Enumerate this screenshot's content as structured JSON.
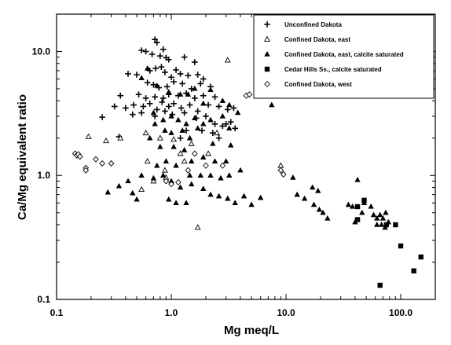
{
  "chart_data": {
    "type": "scatter",
    "title": "",
    "xlabel": "Mg  meq/L",
    "ylabel": "Ca/Mg  equivalent ratio",
    "x_scale": "log",
    "y_scale": "log",
    "xlim": [
      0.1,
      200
    ],
    "ylim": [
      0.1,
      20
    ],
    "x_ticks": [
      0.1,
      1.0,
      10.0,
      100.0
    ],
    "x_tick_labels": [
      "0.1",
      "1.0",
      "10.0",
      "100.0"
    ],
    "y_ticks": [
      0.1,
      1.0,
      10.0
    ],
    "y_tick_labels": [
      "0.1",
      "1.0",
      "10.0"
    ],
    "grid": false,
    "legend_position": "top-right",
    "series": [
      {
        "name": "Unconfined Dakota",
        "marker": "plus",
        "points": [
          [
            0.72,
            12.5
          ],
          [
            0.75,
            11.8
          ],
          [
            0.55,
            10.2
          ],
          [
            0.6,
            10.0
          ],
          [
            0.85,
            10.4
          ],
          [
            0.68,
            9.5
          ],
          [
            0.8,
            9.2
          ],
          [
            0.9,
            8.9
          ],
          [
            0.95,
            8.6
          ],
          [
            1.3,
            9.0
          ],
          [
            1.6,
            8.2
          ],
          [
            0.42,
            6.6
          ],
          [
            0.5,
            6.5
          ],
          [
            0.65,
            7.0
          ],
          [
            0.73,
            7.3
          ],
          [
            0.82,
            7.5
          ],
          [
            0.88,
            6.8
          ],
          [
            1.0,
            6.2
          ],
          [
            1.1,
            7.1
          ],
          [
            1.2,
            6.6
          ],
          [
            1.4,
            6.4
          ],
          [
            1.7,
            6.5
          ],
          [
            1.9,
            6.0
          ],
          [
            0.62,
            5.6
          ],
          [
            0.7,
            5.4
          ],
          [
            0.78,
            5.1
          ],
          [
            0.92,
            5.2
          ],
          [
            1.05,
            5.7
          ],
          [
            1.25,
            5.5
          ],
          [
            1.5,
            5.0
          ],
          [
            2.2,
            5.2
          ],
          [
            1.8,
            5.5
          ],
          [
            0.36,
            4.4
          ],
          [
            0.52,
            4.5
          ],
          [
            0.6,
            4.2
          ],
          [
            0.72,
            4.3
          ],
          [
            0.85,
            4.2
          ],
          [
            0.95,
            4.5
          ],
          [
            1.15,
            4.4
          ],
          [
            1.35,
            4.6
          ],
          [
            1.6,
            4.2
          ],
          [
            1.9,
            4.4
          ],
          [
            2.4,
            4.3
          ],
          [
            0.32,
            3.6
          ],
          [
            0.4,
            3.5
          ],
          [
            0.47,
            3.7
          ],
          [
            0.57,
            3.6
          ],
          [
            0.65,
            3.8
          ],
          [
            0.75,
            3.4
          ],
          [
            0.83,
            3.9
          ],
          [
            0.95,
            3.6
          ],
          [
            1.05,
            3.8
          ],
          [
            1.22,
            3.5
          ],
          [
            1.45,
            3.7
          ],
          [
            1.7,
            3.3
          ],
          [
            2.1,
            3.7
          ],
          [
            2.6,
            3.6
          ],
          [
            3.1,
            3.4
          ],
          [
            3.5,
            3.5
          ],
          [
            0.46,
            3.1
          ],
          [
            0.55,
            3.2
          ],
          [
            0.72,
            3.0
          ],
          [
            0.88,
            3.3
          ],
          [
            1.02,
            3.1
          ],
          [
            1.3,
            3.2
          ],
          [
            1.65,
            2.9
          ],
          [
            2.0,
            3.0
          ],
          [
            2.4,
            2.6
          ],
          [
            2.8,
            2.5
          ],
          [
            0.25,
            2.95
          ],
          [
            1.35,
            2.3
          ],
          [
            1.85,
            2.3
          ],
          [
            2.3,
            2.2
          ],
          [
            3.0,
            2.6
          ],
          [
            3.3,
            2.7
          ],
          [
            3.6,
            2.4
          ],
          [
            0.35,
            2.05
          ],
          [
            1.2,
            2.0
          ],
          [
            2.6,
            2.0
          ]
        ]
      },
      {
        "name": "Confined Dakota, east",
        "marker": "triangle-open",
        "points": [
          [
            0.19,
            2.05
          ],
          [
            0.27,
            1.9
          ],
          [
            0.36,
            2.0
          ],
          [
            0.6,
            2.2
          ],
          [
            0.8,
            2.0
          ],
          [
            1.05,
            1.95
          ],
          [
            1.5,
            1.8
          ],
          [
            2.1,
            1.5
          ],
          [
            2.5,
            2.2
          ],
          [
            3.1,
            8.5
          ],
          [
            0.88,
            1.1
          ],
          [
            0.62,
            1.3
          ],
          [
            1.3,
            1.3
          ],
          [
            0.7,
            0.9
          ],
          [
            0.55,
            0.77
          ],
          [
            1.7,
            0.38
          ],
          [
            9.0,
            1.2
          ],
          [
            0.9,
            0.96
          ],
          [
            1.2,
            1.5
          ]
        ]
      },
      {
        "name": "Confined Dakota, east, calcite saturated",
        "marker": "triangle-filled",
        "points": [
          [
            0.62,
            7.3
          ],
          [
            0.55,
            6.1
          ],
          [
            0.75,
            5.3
          ],
          [
            0.95,
            4.7
          ],
          [
            1.2,
            4.5
          ],
          [
            1.4,
            4.5
          ],
          [
            1.6,
            5.0
          ],
          [
            1.9,
            3.8
          ],
          [
            2.2,
            4.9
          ],
          [
            2.8,
            4.0
          ],
          [
            3.2,
            3.7
          ],
          [
            3.8,
            3.2
          ],
          [
            0.7,
            3.2
          ],
          [
            0.85,
            2.8
          ],
          [
            1.0,
            3.0
          ],
          [
            1.15,
            2.8
          ],
          [
            1.35,
            2.6
          ],
          [
            1.6,
            2.9
          ],
          [
            1.9,
            2.6
          ],
          [
            2.2,
            2.8
          ],
          [
            2.8,
            3.0
          ],
          [
            3.2,
            2.4
          ],
          [
            7.5,
            3.7
          ],
          [
            0.72,
            2.6
          ],
          [
            0.88,
            2.3
          ],
          [
            1.0,
            2.2
          ],
          [
            1.25,
            2.3
          ],
          [
            1.45,
            2.0
          ],
          [
            1.7,
            2.4
          ],
          [
            2.3,
            1.8
          ],
          [
            3.3,
            1.75
          ],
          [
            0.65,
            2.0
          ],
          [
            0.8,
            1.7
          ],
          [
            1.05,
            1.7
          ],
          [
            1.3,
            1.6
          ],
          [
            1.5,
            1.3
          ],
          [
            1.9,
            1.4
          ],
          [
            2.4,
            1.3
          ],
          [
            3.0,
            1.3
          ],
          [
            4.0,
            1.1
          ],
          [
            0.75,
            1.2
          ],
          [
            0.9,
            1.3
          ],
          [
            1.1,
            1.2
          ],
          [
            1.45,
            1.0
          ],
          [
            1.8,
            1.0
          ],
          [
            2.2,
            1.0
          ],
          [
            2.7,
            0.95
          ],
          [
            3.2,
            1.0
          ],
          [
            0.7,
            0.95
          ],
          [
            0.85,
            1.0
          ],
          [
            1.0,
            0.9
          ],
          [
            1.2,
            0.8
          ],
          [
            1.5,
            0.85
          ],
          [
            1.9,
            0.78
          ],
          [
            2.2,
            0.7
          ],
          [
            2.6,
            0.68
          ],
          [
            3.1,
            0.65
          ],
          [
            3.6,
            0.6
          ],
          [
            4.3,
            0.68
          ],
          [
            5.0,
            0.58
          ],
          [
            6.0,
            0.66
          ],
          [
            0.95,
            0.64
          ],
          [
            1.1,
            0.6
          ],
          [
            0.28,
            0.73
          ],
          [
            0.35,
            0.82
          ],
          [
            0.42,
            0.9
          ],
          [
            0.46,
            0.72
          ],
          [
            0.55,
            1.0
          ],
          [
            0.5,
            0.64
          ],
          [
            1.35,
            0.6
          ],
          [
            11.5,
            0.96
          ],
          [
            12.5,
            0.7
          ],
          [
            14.5,
            0.65
          ],
          [
            17.0,
            0.8
          ],
          [
            19.0,
            0.75
          ],
          [
            17.5,
            0.58
          ],
          [
            21.0,
            0.5
          ],
          [
            23.0,
            0.45
          ],
          [
            19.5,
            0.53
          ],
          [
            35.0,
            0.58
          ],
          [
            38.0,
            0.56
          ],
          [
            42.0,
            0.92
          ],
          [
            46.0,
            0.5
          ],
          [
            55.0,
            0.56
          ],
          [
            48.0,
            0.6
          ],
          [
            58.0,
            0.48
          ],
          [
            62.0,
            0.45
          ],
          [
            66.0,
            0.48
          ],
          [
            70.0,
            0.45
          ],
          [
            74.0,
            0.5
          ],
          [
            78.0,
            0.42
          ],
          [
            40.0,
            0.42
          ],
          [
            68.0,
            0.4
          ],
          [
            73.0,
            0.38
          ],
          [
            62.0,
            0.4
          ]
        ]
      },
      {
        "name": "Cedar Hills Ss., calcite saturated",
        "marker": "square-filled",
        "points": [
          [
            42.0,
            0.56
          ],
          [
            48.0,
            0.63
          ],
          [
            42.0,
            0.44
          ],
          [
            75.0,
            0.4
          ],
          [
            90.0,
            0.4
          ],
          [
            100.0,
            0.27
          ],
          [
            130.0,
            0.17
          ],
          [
            150.0,
            0.22
          ],
          [
            66.0,
            0.13
          ]
        ]
      },
      {
        "name": "Confined Dakota, west",
        "marker": "diamond-open",
        "points": [
          [
            0.145,
            1.5
          ],
          [
            0.15,
            1.45
          ],
          [
            0.155,
            1.48
          ],
          [
            0.16,
            1.42
          ],
          [
            0.18,
            1.15
          ],
          [
            0.18,
            1.1
          ],
          [
            0.22,
            1.35
          ],
          [
            0.25,
            1.25
          ],
          [
            0.3,
            1.25
          ],
          [
            0.9,
            0.9
          ],
          [
            1.0,
            0.85
          ],
          [
            1.4,
            1.1
          ],
          [
            1.6,
            1.5
          ],
          [
            2.8,
            1.2
          ],
          [
            2.0,
            1.2
          ],
          [
            4.5,
            4.4
          ],
          [
            4.8,
            4.5
          ],
          [
            9.0,
            1.1
          ],
          [
            9.5,
            1.02
          ],
          [
            1.15,
            0.88
          ]
        ]
      }
    ]
  }
}
